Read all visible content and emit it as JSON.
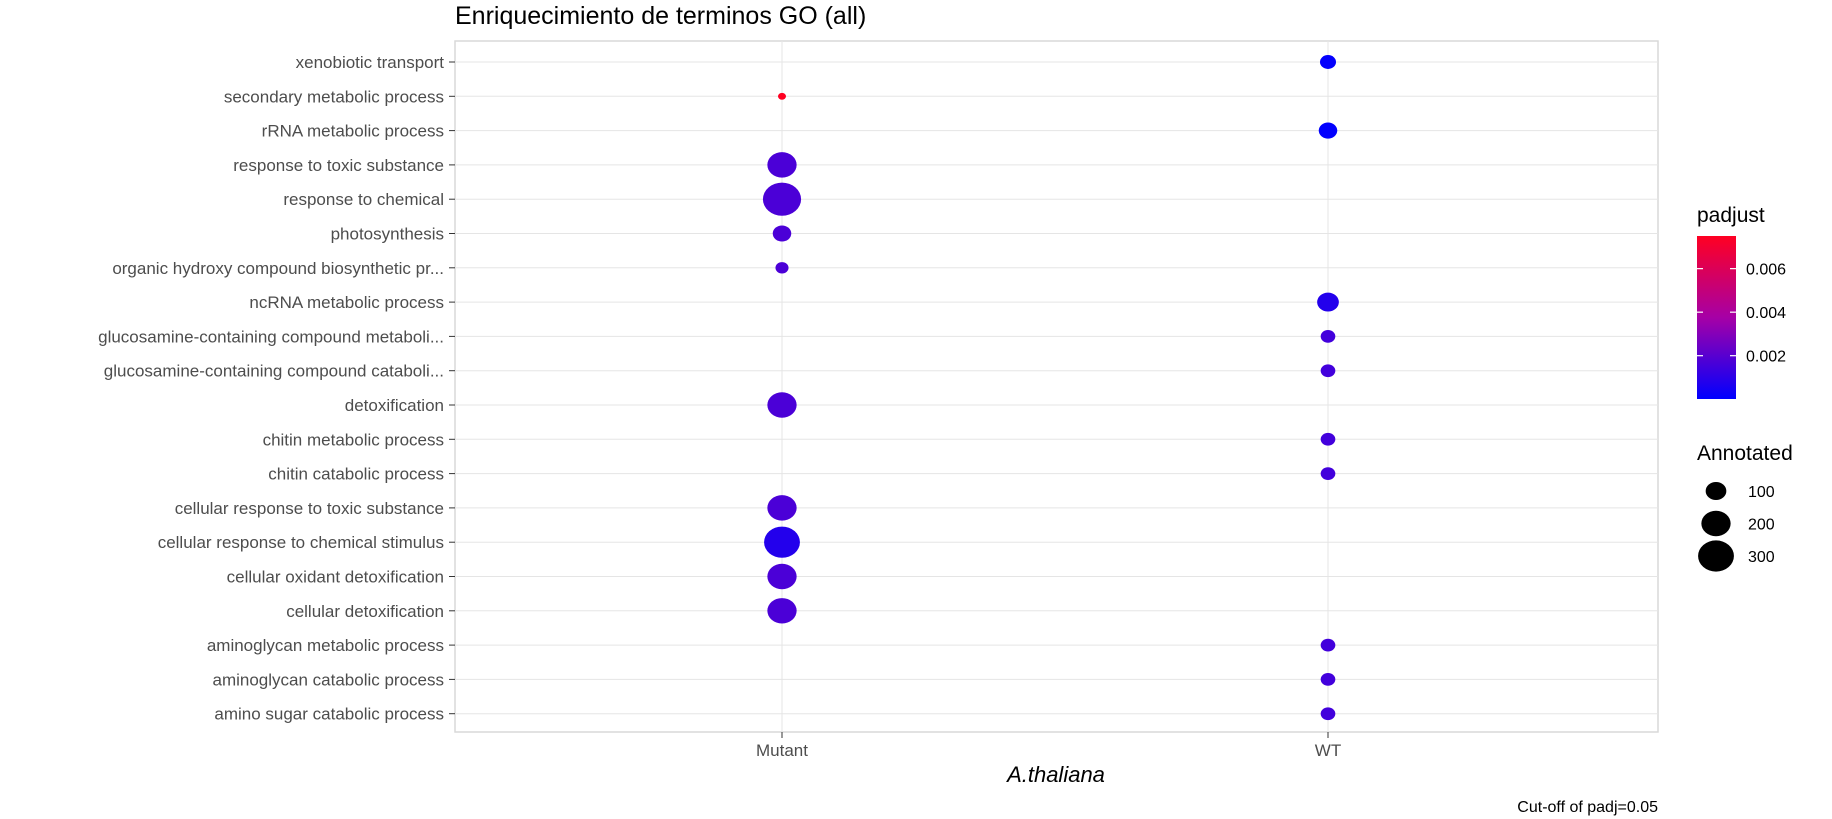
{
  "chart_data": {
    "type": "scatter",
    "title": "Enriquecimiento de terminos GO (all)",
    "xlabel": "A.thaliana",
    "ylabel": "",
    "caption": "Cut-off of padj=0.05",
    "grid": true,
    "categories_x": [
      "Mutant",
      "WT"
    ],
    "categories_y": [
      "xenobiotic transport",
      "secondary metabolic process",
      "rRNA metabolic process",
      "response to toxic substance",
      "response to chemical",
      "photosynthesis",
      "organic hydroxy compound biosynthetic pr...",
      "ncRNA metabolic process",
      "glucosamine-containing compound metaboli...",
      "glucosamine-containing compound cataboli...",
      "detoxification",
      "chitin metabolic process",
      "chitin catabolic process",
      "cellular response to toxic substance",
      "cellular response to chemical stimulus",
      "cellular oxidant detoxification",
      "cellular detoxification",
      "aminoglycan metabolic process",
      "aminoglycan catabolic process",
      "amino sugar catabolic process"
    ],
    "points": [
      {
        "term": "xenobiotic transport",
        "group": "WT",
        "padjust": 0.0001,
        "annotated": 60
      },
      {
        "term": "secondary metabolic process",
        "group": "Mutant",
        "padjust": 0.0075,
        "annotated": 15
      },
      {
        "term": "rRNA metabolic process",
        "group": "WT",
        "padjust": 5e-05,
        "annotated": 80
      },
      {
        "term": "response to toxic substance",
        "group": "Mutant",
        "padjust": 0.0017,
        "annotated": 200
      },
      {
        "term": "response to chemical",
        "group": "Mutant",
        "padjust": 0.0017,
        "annotated": 340
      },
      {
        "term": "photosynthesis",
        "group": "Mutant",
        "padjust": 0.0017,
        "annotated": 80
      },
      {
        "term": "organic hydroxy compound biosynthetic pr...",
        "group": "Mutant",
        "padjust": 0.0017,
        "annotated": 40
      },
      {
        "term": "ncRNA metabolic process",
        "group": "WT",
        "padjust": 0.0008,
        "annotated": 110
      },
      {
        "term": "glucosamine-containing compound metaboli...",
        "group": "WT",
        "padjust": 0.0015,
        "annotated": 50
      },
      {
        "term": "glucosamine-containing compound cataboli...",
        "group": "WT",
        "padjust": 0.0015,
        "annotated": 50
      },
      {
        "term": "detoxification",
        "group": "Mutant",
        "padjust": 0.0017,
        "annotated": 200
      },
      {
        "term": "chitin metabolic process",
        "group": "WT",
        "padjust": 0.0015,
        "annotated": 50
      },
      {
        "term": "chitin catabolic process",
        "group": "WT",
        "padjust": 0.0015,
        "annotated": 50
      },
      {
        "term": "cellular response to toxic substance",
        "group": "Mutant",
        "padjust": 0.0017,
        "annotated": 200
      },
      {
        "term": "cellular response to chemical stimulus",
        "group": "Mutant",
        "padjust": 0.0008,
        "annotated": 300
      },
      {
        "term": "cellular oxidant detoxification",
        "group": "Mutant",
        "padjust": 0.0017,
        "annotated": 200
      },
      {
        "term": "cellular detoxification",
        "group": "Mutant",
        "padjust": 0.0017,
        "annotated": 200
      },
      {
        "term": "aminoglycan metabolic process",
        "group": "WT",
        "padjust": 0.0015,
        "annotated": 50
      },
      {
        "term": "aminoglycan catabolic process",
        "group": "WT",
        "padjust": 0.0015,
        "annotated": 50
      },
      {
        "term": "amino sugar catabolic process",
        "group": "WT",
        "padjust": 0.0015,
        "annotated": 50
      }
    ],
    "color_scale": {
      "title": "padjust",
      "low_color": "#0000ff",
      "high_color": "#ff0000",
      "min": 1e-05,
      "max": 0.0075,
      "ticks": [
        0.002,
        0.004,
        0.006
      ],
      "tick_labels": [
        "0.002",
        "0.004",
        "0.006"
      ]
    },
    "size_scale": {
      "title": "Annotated",
      "values": [
        100,
        200,
        300
      ],
      "labels": [
        "100",
        "200",
        "300"
      ]
    },
    "colors": {
      "panel_border": "#d9d9d9",
      "grid": "#e5e5e5"
    }
  }
}
